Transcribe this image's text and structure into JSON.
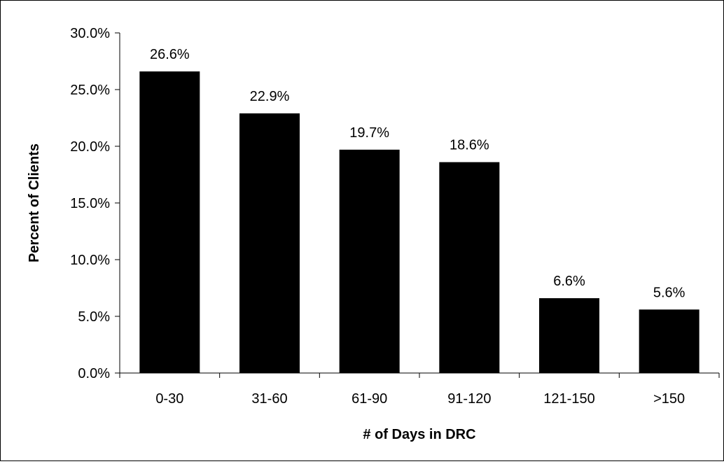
{
  "chart_data": {
    "type": "bar",
    "title": "",
    "xlabel": "# of Days in DRC",
    "ylabel": "Percent of Clients",
    "categories": [
      "0-30",
      "31-60",
      "61-90",
      "91-120",
      "121-150",
      ">150"
    ],
    "values": [
      26.6,
      22.9,
      19.7,
      18.6,
      6.6,
      5.6
    ],
    "data_labels": [
      "26.6%",
      "22.9%",
      "19.7%",
      "18.6%",
      "6.6%",
      "5.6%"
    ],
    "ylim": [
      0,
      30
    ],
    "yticks": [
      0,
      5,
      10,
      15,
      20,
      25,
      30
    ],
    "ytick_labels": [
      "0.0%",
      "5.0%",
      "10.0%",
      "15.0%",
      "20.0%",
      "25.0%",
      "30.0%"
    ],
    "grid": false,
    "legend": "none",
    "bar_color": "#000000"
  }
}
